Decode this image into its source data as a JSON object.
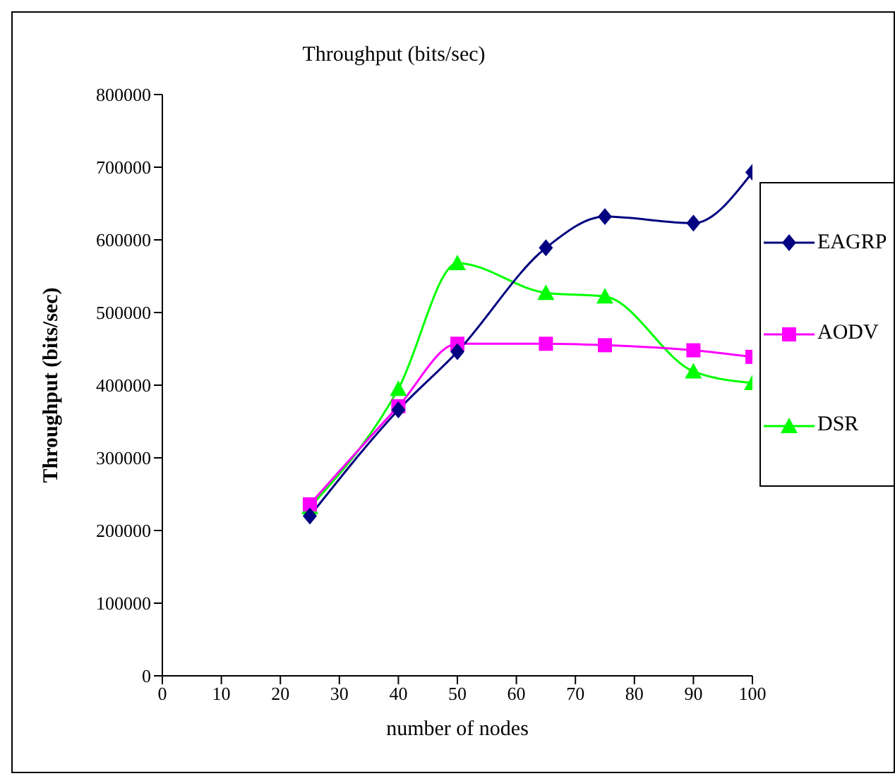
{
  "chart_data": {
    "type": "line",
    "title": "Throughput (bits/sec)",
    "xlabel": "number of nodes",
    "ylabel": "Throughput (bits/sec)",
    "x": [
      25,
      40,
      50,
      65,
      75,
      90,
      100
    ],
    "series": [
      {
        "name": "EAGRP",
        "color": "#000080",
        "marker": "diamond",
        "values": [
          220000,
          366000,
          446000,
          589000,
          632000,
          623000,
          693000
        ]
      },
      {
        "name": "AODV",
        "color": "#ff00ff",
        "marker": "square",
        "values": [
          236000,
          371000,
          457000,
          457000,
          455000,
          448000,
          439000
        ]
      },
      {
        "name": "DSR",
        "color": "#00ff00",
        "marker": "triangle",
        "values": [
          232000,
          395000,
          568000,
          527000,
          522000,
          419000,
          403000
        ]
      }
    ],
    "xlim": [
      0,
      100
    ],
    "xticks": [
      0,
      10,
      20,
      30,
      40,
      50,
      60,
      70,
      80,
      90,
      100
    ],
    "ylim": [
      0,
      800000
    ],
    "yticks": [
      0,
      100000,
      200000,
      300000,
      400000,
      500000,
      600000,
      700000,
      800000
    ],
    "grid": false,
    "legend": "right",
    "line_style": "solid"
  }
}
